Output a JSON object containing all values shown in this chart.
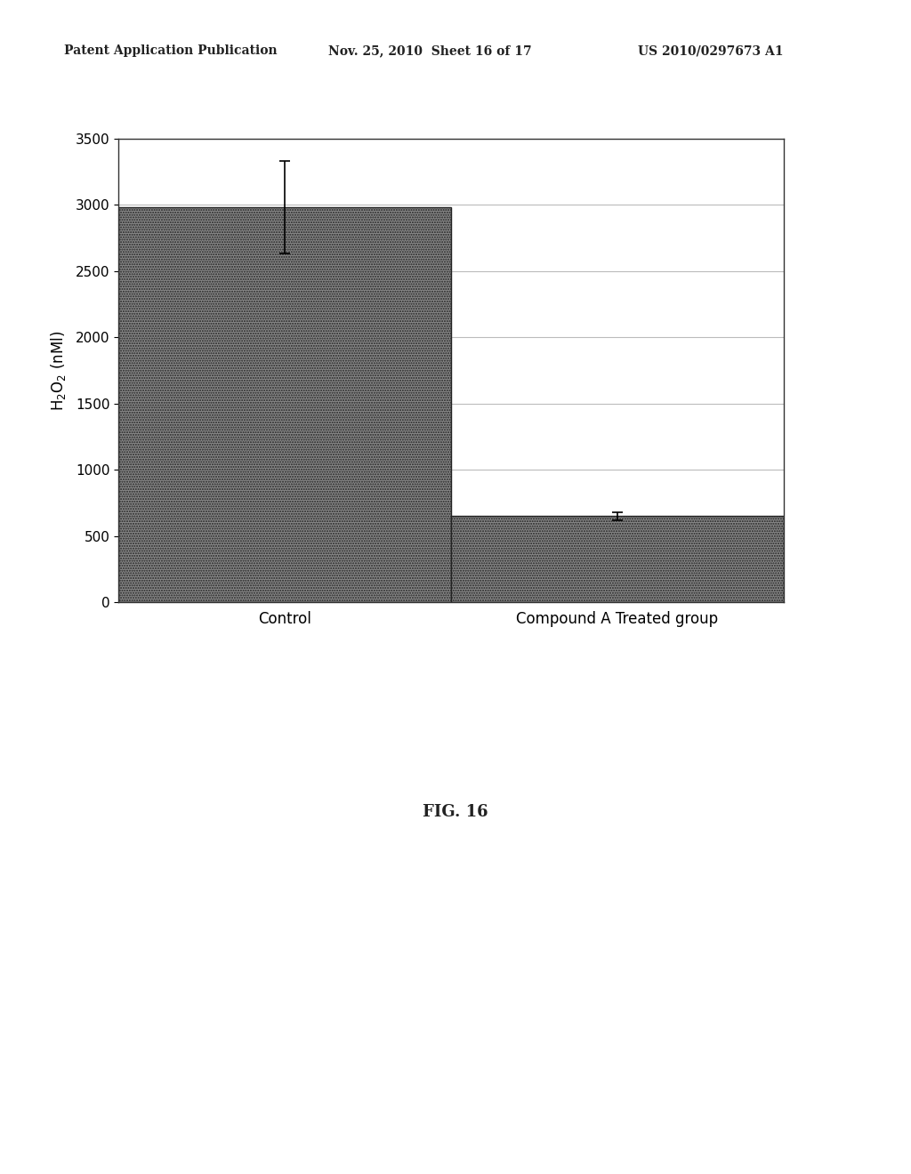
{
  "categories": [
    "Control",
    "Compound A Treated group"
  ],
  "values": [
    2980,
    650
  ],
  "errors": [
    350,
    30
  ],
  "bar_color": "#888888",
  "bar_edgecolor": "#222222",
  "ylabel": "H$_2$O$_2$ (nMl)",
  "ylim": [
    0,
    3500
  ],
  "yticks": [
    0,
    500,
    1000,
    1500,
    2000,
    2500,
    3000,
    3500
  ],
  "fig_caption": "FIG. 16",
  "header_left": "Patent Application Publication",
  "header_mid": "Nov. 25, 2010  Sheet 16 of 17",
  "header_right": "US 2010/0297673 A1",
  "background_color": "#ffffff",
  "plot_bg_color": "#ffffff",
  "bar_width": 0.5,
  "grid_color": "#bbbbbb",
  "ylabel_fontsize": 12,
  "tick_fontsize": 11,
  "xlabel_fontsize": 12,
  "header_fontsize": 10,
  "caption_fontsize": 13
}
